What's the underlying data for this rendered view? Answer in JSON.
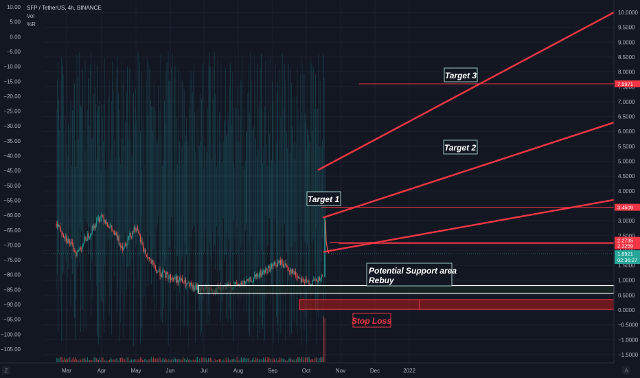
{
  "header": {
    "title": "SFP / TetherUS, 4h, BINANCE",
    "indicator_1": "Vol",
    "indicator_2": "%R"
  },
  "colors": {
    "background": "#131722",
    "grid": "#1e2230",
    "axis_text": "#b2b5be",
    "up_candle": "#26a69a",
    "down_candle": "#ef5350",
    "target_line": "#f23645",
    "support_box": "#ffffff",
    "stop_box": "#b71c1c",
    "osc_line": "#1f6f79",
    "price_tag_red": "#f23645",
    "price_tag_green": "#26a69a"
  },
  "chart_data": {
    "type": "line",
    "title": "SFP / TetherUS, 4h, BINANCE",
    "x_axis": {
      "ticks": [
        "Mar",
        "Apr",
        "May",
        "Jun",
        "Jul",
        "Aug",
        "Sep",
        "Oct",
        "Nov",
        "Dec",
        "2022"
      ]
    },
    "right_axis": {
      "range": [
        -1.5,
        10.0
      ],
      "ticks": [
        "10.0000",
        "9.5000",
        "9.0000",
        "8.5000",
        "8.0000",
        "7.5000",
        "7.0000",
        "6.5000",
        "6.0000",
        "5.5000",
        "5.0000",
        "4.5000",
        "4.0000",
        "3.5000",
        "3.0000",
        "2.5000",
        "2.0000",
        "1.5000",
        "1.0000",
        "0.5000",
        "0.0000",
        "−0.5000",
        "−1.0000",
        "−1.5000"
      ]
    },
    "left_axis": {
      "range": [
        -105,
        10
      ],
      "ticks": [
        "10.00",
        "5.00",
        "0.00",
        "−5.00",
        "−10.00",
        "−15.00",
        "−20.00",
        "−25.00",
        "−30.00",
        "−35.00",
        "−40.00",
        "−45.00",
        "−50.00",
        "−55.00",
        "−60.00",
        "−65.00",
        "−70.00",
        "−75.00",
        "−80.00",
        "−85.00",
        "−90.00",
        "−95.00",
        "−100.00",
        "−105.00"
      ]
    },
    "price_series": {
      "x": [
        "2021-02-20",
        "2021-03-01",
        "2021-03-10",
        "2021-03-20",
        "2021-04-01",
        "2021-04-10",
        "2021-04-20",
        "2021-05-01",
        "2021-05-10",
        "2021-05-20",
        "2021-06-01",
        "2021-06-10",
        "2021-06-20",
        "2021-07-01",
        "2021-07-10",
        "2021-07-20",
        "2021-08-01",
        "2021-08-10",
        "2021-08-20",
        "2021-09-01",
        "2021-09-08",
        "2021-09-20",
        "2021-10-01",
        "2021-10-10",
        "2021-10-15",
        "2021-10-17"
      ],
      "y": [
        2.9,
        2.4,
        1.9,
        2.5,
        3.2,
        2.7,
        2.1,
        2.8,
        1.9,
        1.3,
        1.1,
        1.0,
        0.75,
        0.7,
        0.68,
        0.75,
        0.85,
        0.95,
        1.2,
        1.5,
        1.6,
        1.2,
        0.9,
        0.95,
        1.1,
        3.1
      ]
    },
    "annotations": [
      {
        "label": "Target 3",
        "price": "7.5971",
        "value": 7.5971,
        "tag_color": "#f23645"
      },
      {
        "label": "Target 2",
        "value": null
      },
      {
        "label": "Target 1",
        "price": "3.4509",
        "value": 3.4509,
        "tag_color": "#f23645"
      },
      {
        "label": "Potential Support area",
        "value": null
      },
      {
        "label": "Rebuy",
        "value": null
      },
      {
        "label": "Stop Loss",
        "value": null
      }
    ],
    "price_tags": [
      {
        "price": "7.5971",
        "value": 7.5971,
        "color": "#f23645"
      },
      {
        "price": "3.4509",
        "value": 3.4509,
        "color": "#f23645"
      },
      {
        "price": "2.2735",
        "value": 2.2735,
        "color": "#f23645"
      },
      {
        "price": "2.2259",
        "value": 2.2259,
        "color": "#f23645"
      },
      {
        "price": "1.8921",
        "value": 1.8921,
        "countdown": "02:36:27",
        "color": "#26a69a"
      }
    ],
    "grid": true,
    "legend": "none"
  },
  "labels": {
    "target_3": "Target 3",
    "target_2": "Target 2",
    "target_1": "Target 1",
    "support_area": "Potential Support area",
    "rebuy": "Rebuy",
    "stop_loss": "Stop Loss"
  },
  "corner": {
    "left_badge": "Z",
    "right_badge": "A"
  }
}
